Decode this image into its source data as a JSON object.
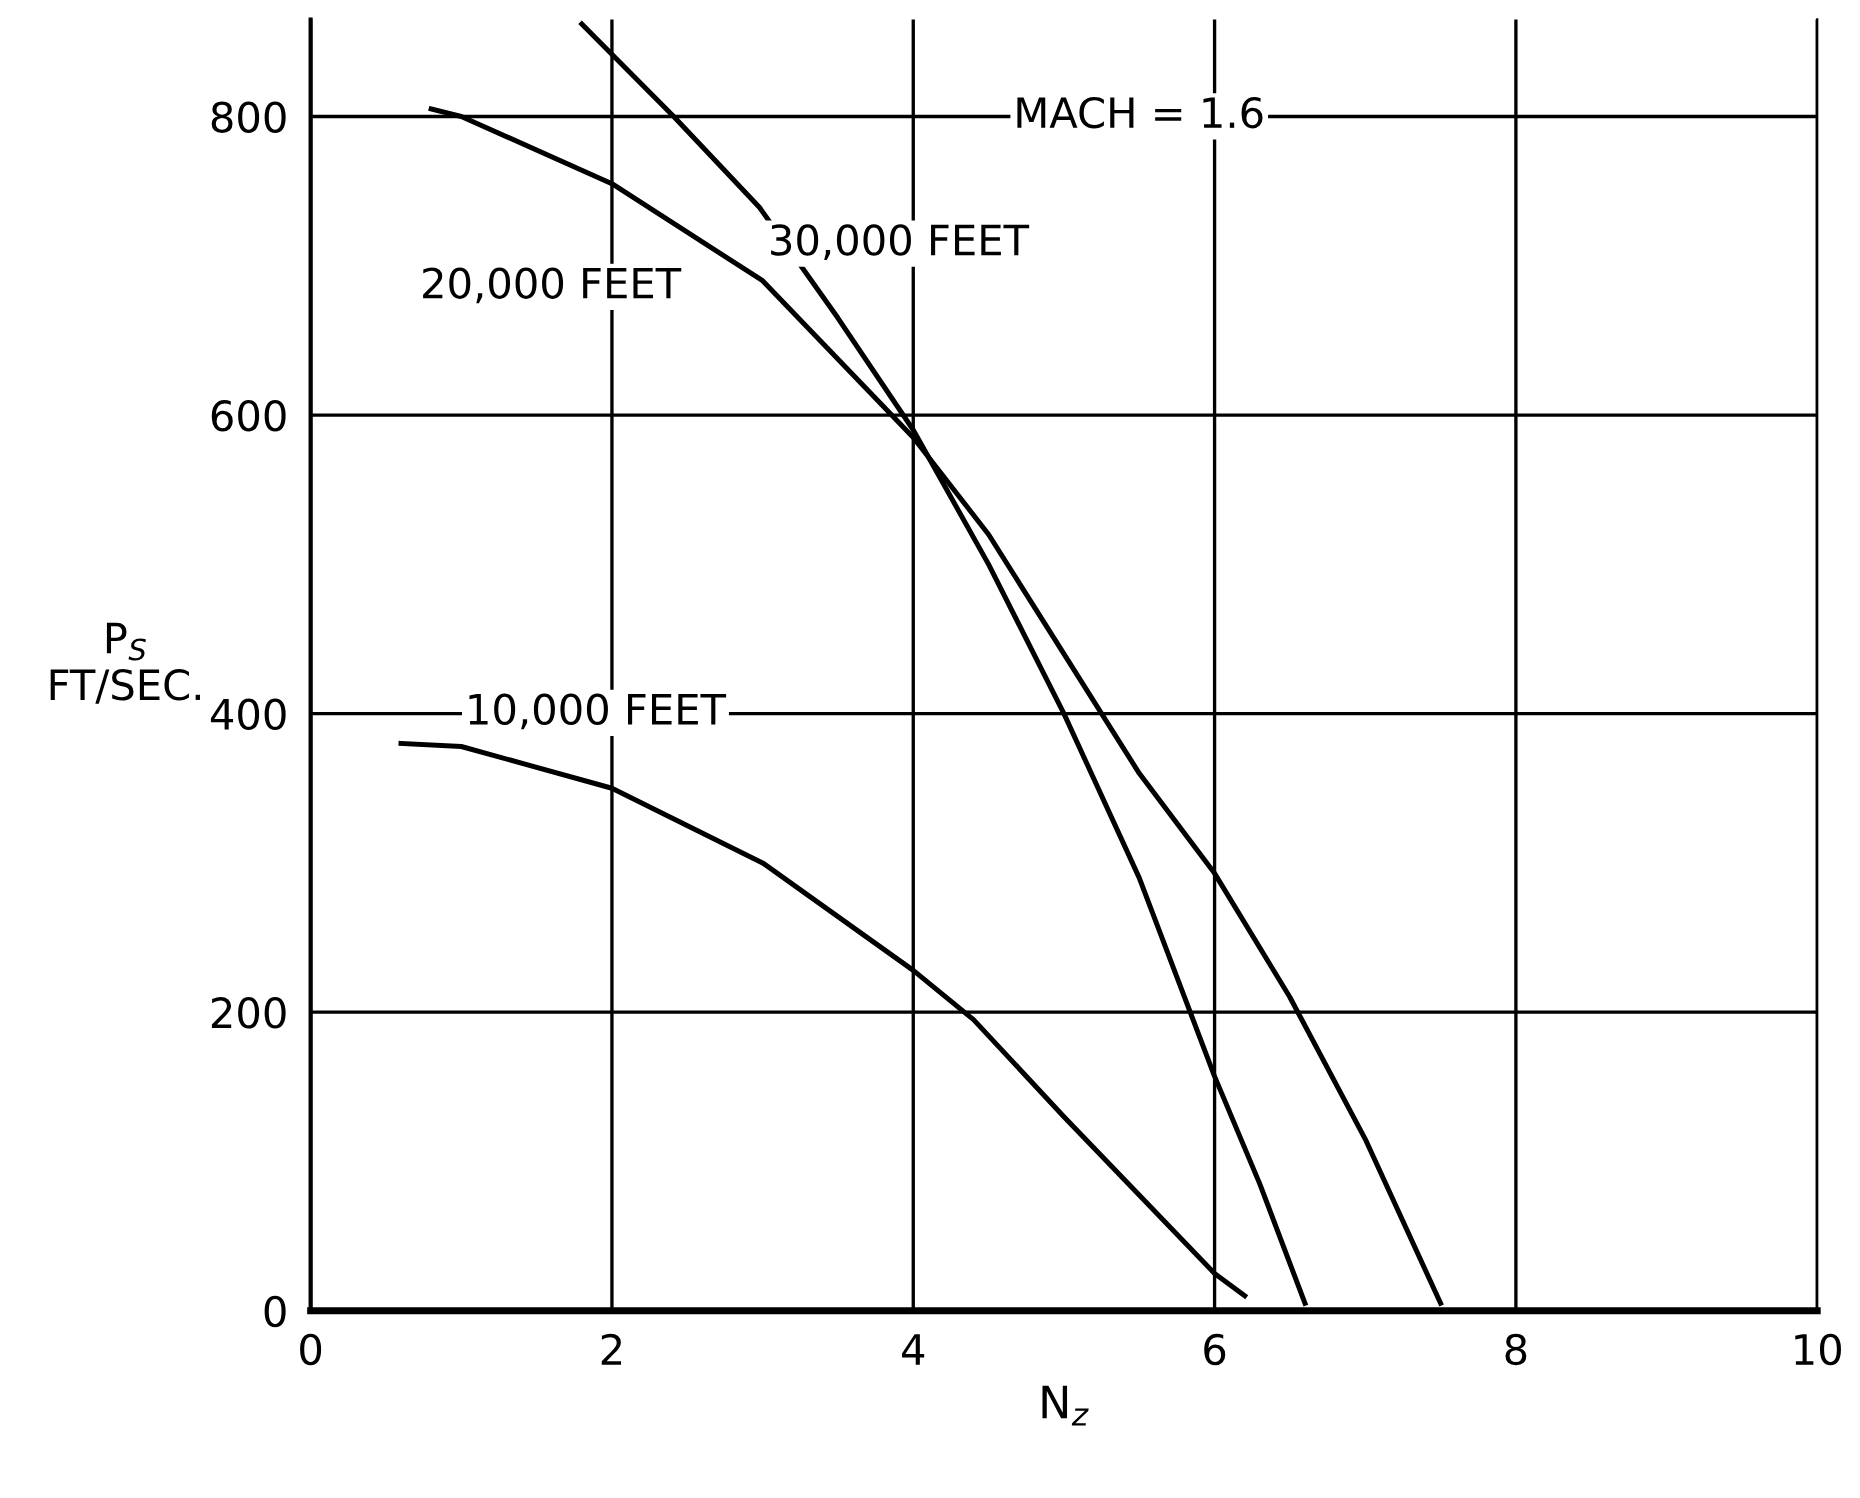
{
  "chart_data": {
    "type": "line",
    "xlabel": "N$_{z}$",
    "ylabel": "P$_{S}$\nFT/SEC.",
    "xlim": [
      0,
      10
    ],
    "xticks": [
      0,
      2,
      4,
      6,
      8,
      10
    ],
    "ylim": [
      0,
      865
    ],
    "yticks": [
      0,
      200,
      400,
      600,
      800
    ],
    "grid": true,
    "marker": "none",
    "line_style": "solid",
    "series": [
      {
        "name": "10,000 FEET",
        "color": "#000000",
        "x": [
          0.6,
          1,
          2,
          3,
          4,
          4.4,
          5,
          6,
          6.2
        ],
        "values": [
          380,
          378,
          350,
          300,
          228,
          195,
          130,
          25,
          10
        ]
      },
      {
        "name": "20,000 FEET",
        "color": "#000000",
        "x": [
          0.8,
          1,
          2,
          3,
          4,
          4.5,
          5,
          5.5,
          6,
          6.5,
          7,
          7.5
        ],
        "values": [
          805,
          800,
          755,
          690,
          585,
          520,
          440,
          360,
          293,
          210,
          115,
          5
        ]
      },
      {
        "name": "30,000 FEET",
        "color": "#000000",
        "x": [
          1.8,
          2.41,
          2.98,
          3.5,
          4,
          4.5,
          5,
          5.5,
          6,
          6.3,
          6.6
        ],
        "values": [
          862,
          800,
          739,
          665,
          590,
          500,
          400,
          290,
          157,
          85,
          5
        ]
      }
    ],
    "annotations": [
      "MACH = 1.6"
    ]
  }
}
